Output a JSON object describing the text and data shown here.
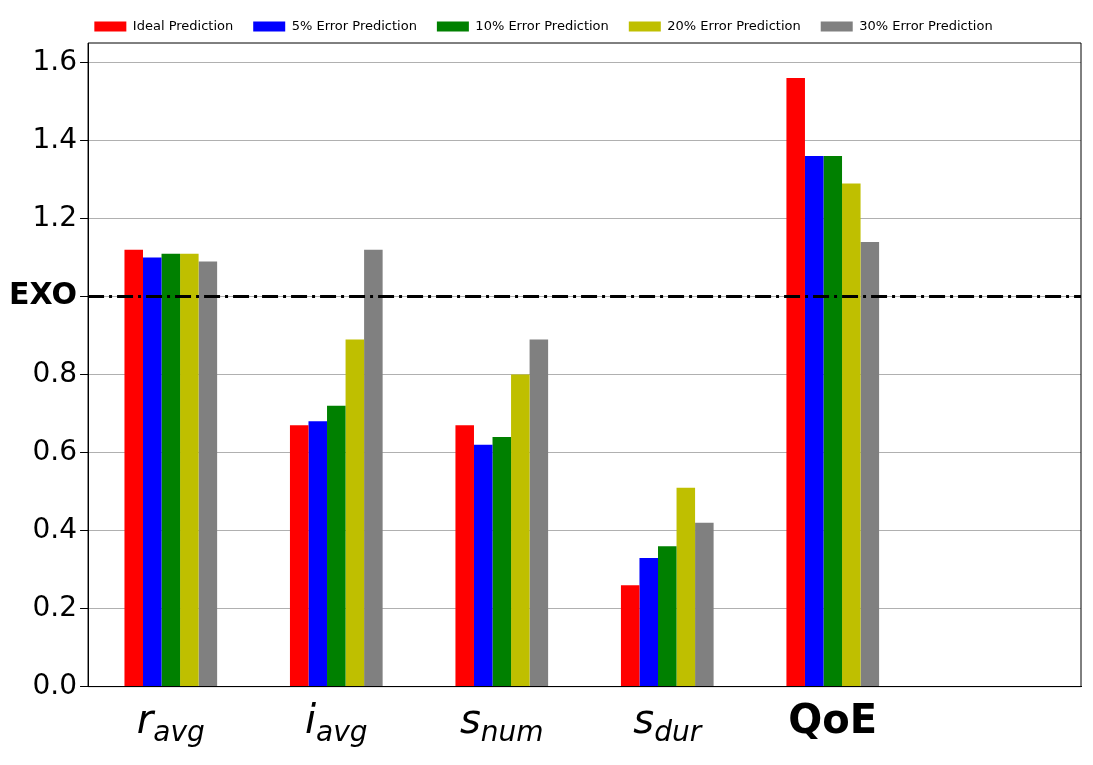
{
  "chart_data": {
    "type": "bar",
    "categories": [
      "r$_{avg}$",
      "i$_{avg}$",
      "s$_{num}$",
      "s$_{dur}$",
      "QoE",
      null
    ],
    "series": [
      {
        "name": "Ideal Prediction",
        "color": "#ff0000",
        "values": [
          1.12,
          0.67,
          0.67,
          0.26,
          1.56,
          null
        ]
      },
      {
        "name": "5% Error Prediction",
        "color": "#0000ff",
        "values": [
          1.1,
          0.68,
          0.62,
          0.33,
          1.36,
          null
        ]
      },
      {
        "name": "10% Error Prediction",
        "color": "#008000",
        "values": [
          1.11,
          0.72,
          0.64,
          0.36,
          1.36,
          null
        ]
      },
      {
        "name": "20% Error Prediction",
        "color": "#bfbf00",
        "values": [
          1.11,
          0.89,
          0.8,
          0.51,
          1.29,
          null
        ]
      },
      {
        "name": "30% Error Prediction",
        "color": "#808080",
        "values": [
          1.09,
          1.12,
          0.89,
          0.42,
          1.14,
          null
        ]
      }
    ],
    "ylim": [
      0,
      1.65
    ],
    "yticks": [
      {
        "value": 0,
        "label": "0.0"
      },
      0.2,
      0.4,
      0.6,
      0.8,
      {
        "value": 1.0,
        "label": "EXO"
      },
      1.2,
      1.4,
      1.6
    ],
    "ref_lines": [
      {
        "axis": "y",
        "value": 1.0,
        "color": "#000000",
        "line_style": "dashed"
      }
    ],
    "grid": "y",
    "legend": "top"
  }
}
